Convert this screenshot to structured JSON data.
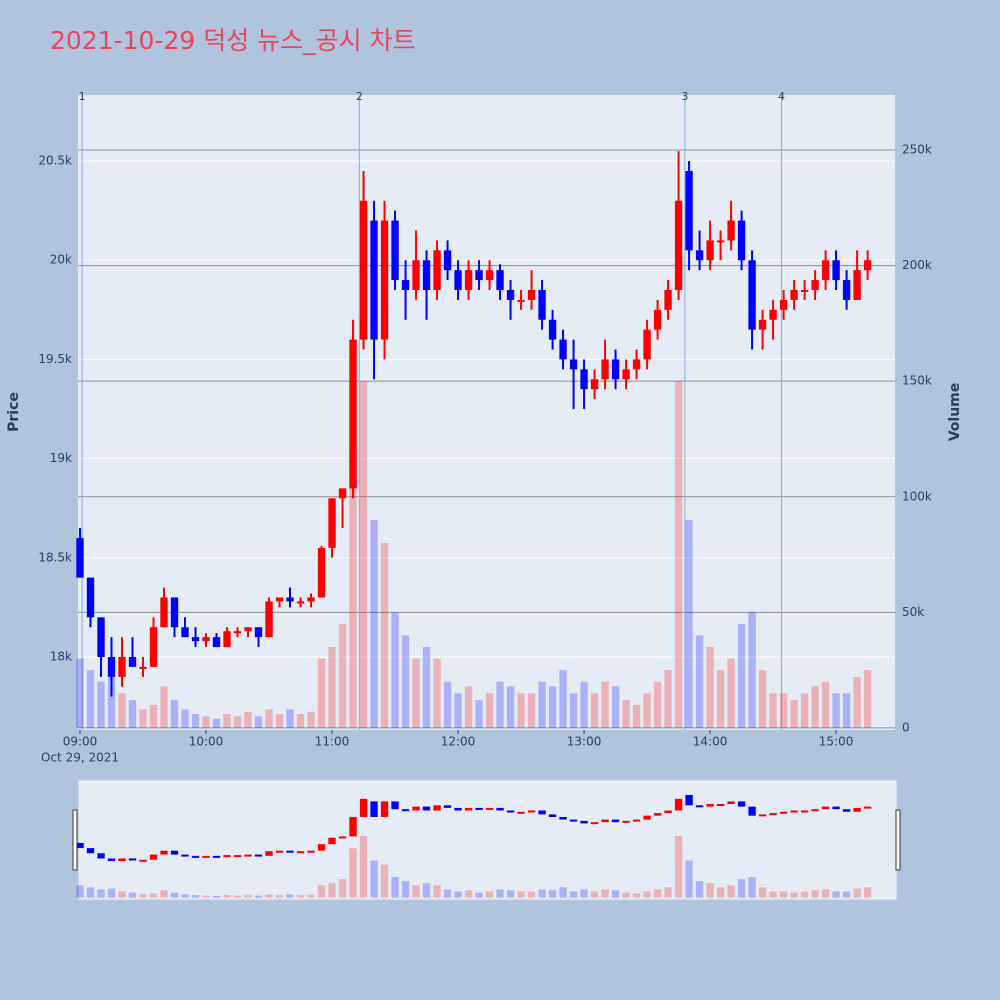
{
  "chart_data": {
    "type": "candlestick",
    "title": "2021-10-29 덕성 뉴스_공시 차트",
    "date_label": "Oct 29, 2021",
    "ylabel": "Price",
    "y2label": "Volume",
    "increasing_color": "#ff0000",
    "decreasing_color": "#0000ff",
    "xlim": [
      "09:00",
      "15:29"
    ],
    "xticks": [
      "09:00",
      "10:00",
      "11:00",
      "12:00",
      "13:00",
      "14:00",
      "15:00"
    ],
    "ylim": [
      17632,
      20833
    ],
    "yticks": [
      {
        "value": 18000,
        "label": "18k"
      },
      {
        "value": 18500,
        "label": "18.5k"
      },
      {
        "value": 19000,
        "label": "19k"
      },
      {
        "value": 19500,
        "label": "19.5k"
      },
      {
        "value": 20000,
        "label": "20k"
      },
      {
        "value": 20500,
        "label": "20.5k"
      }
    ],
    "y2lim": [
      -900,
      273800
    ],
    "y2ticks": [
      0,
      {
        "value": 50000,
        "label": "50k"
      },
      {
        "value": 100000,
        "label": "100k"
      },
      {
        "value": 150000,
        "label": "150k"
      },
      {
        "value": 200000,
        "label": "200k"
      },
      {
        "value": 250000,
        "label": "250k"
      }
    ],
    "annotations": [
      {
        "label": "1",
        "x": "09:01"
      },
      {
        "label": "2",
        "x": "11:13"
      },
      {
        "label": "3",
        "x": "13:48"
      },
      {
        "label": "4",
        "x": "14:34"
      }
    ],
    "x": [
      "09:00",
      "09:05",
      "09:10",
      "09:15",
      "09:20",
      "09:25",
      "09:30",
      "09:35",
      "09:40",
      "09:45",
      "09:50",
      "09:55",
      "10:00",
      "10:05",
      "10:10",
      "10:15",
      "10:20",
      "10:25",
      "10:30",
      "10:35",
      "10:40",
      "10:45",
      "10:50",
      "10:55",
      "11:00",
      "11:05",
      "11:10",
      "11:15",
      "11:20",
      "11:25",
      "11:30",
      "11:35",
      "11:40",
      "11:45",
      "11:50",
      "11:55",
      "12:00",
      "12:05",
      "12:10",
      "12:15",
      "12:20",
      "12:25",
      "12:30",
      "12:35",
      "12:40",
      "12:45",
      "12:50",
      "12:55",
      "13:00",
      "13:05",
      "13:10",
      "13:15",
      "13:20",
      "13:25",
      "13:30",
      "13:35",
      "13:40",
      "13:45",
      "13:50",
      "13:55",
      "14:00",
      "14:05",
      "14:10",
      "14:15",
      "14:20",
      "14:25",
      "14:30",
      "14:35",
      "14:40",
      "14:45",
      "14:50",
      "14:55",
      "15:00",
      "15:05",
      "15:10",
      "15:15"
    ],
    "open": [
      18600,
      18400,
      18200,
      18000,
      17900,
      18000,
      17950,
      17950,
      18150,
      18300,
      18150,
      18100,
      18080,
      18100,
      18050,
      18130,
      18130,
      18150,
      18100,
      18280,
      18300,
      18280,
      18280,
      18300,
      18550,
      18800,
      18850,
      19600,
      20200,
      19600,
      20200,
      19900,
      19850,
      20000,
      19850,
      20050,
      19950,
      19850,
      19950,
      19900,
      19950,
      19850,
      19800,
      19800,
      19850,
      19700,
      19600,
      19500,
      19450,
      19350,
      19400,
      19500,
      19400,
      19450,
      19500,
      19650,
      19750,
      19850,
      20450,
      20050,
      20000,
      20100,
      20100,
      20200,
      20000,
      19650,
      19700,
      19750,
      19800,
      19850,
      19850,
      19900,
      20000,
      19900,
      19800,
      19950
    ],
    "high": [
      18650,
      18400,
      18200,
      18100,
      18100,
      18100,
      18000,
      18200,
      18350,
      18300,
      18200,
      18150,
      18120,
      18120,
      18150,
      18150,
      18150,
      18150,
      18300,
      18300,
      18350,
      18300,
      18320,
      18560,
      18800,
      18850,
      19700,
      20450,
      20300,
      20300,
      20250,
      20000,
      20150,
      20050,
      20100,
      20100,
      20000,
      20000,
      20000,
      20000,
      19980,
      19900,
      19850,
      19950,
      19900,
      19750,
      19650,
      19600,
      19500,
      19450,
      19600,
      19550,
      19500,
      19550,
      19700,
      19800,
      19900,
      20550,
      20500,
      20150,
      20200,
      20150,
      20300,
      20250,
      20050,
      19750,
      19800,
      19850,
      19900,
      19900,
      19950,
      20050,
      20050,
      19950,
      20050,
      20050
    ],
    "low": [
      18400,
      18150,
      17900,
      17800,
      17850,
      17950,
      17900,
      17950,
      18150,
      18100,
      18100,
      18050,
      18050,
      18050,
      18050,
      18100,
      18100,
      18050,
      18100,
      18250,
      18250,
      18250,
      18250,
      18300,
      18500,
      18650,
      18800,
      19550,
      19400,
      19500,
      19850,
      19700,
      19800,
      19700,
      19800,
      19900,
      19800,
      19800,
      19850,
      19850,
      19800,
      19700,
      19750,
      19750,
      19650,
      19550,
      19450,
      19250,
      19250,
      19300,
      19350,
      19350,
      19350,
      19400,
      19450,
      19600,
      19700,
      19800,
      19950,
      19950,
      19950,
      20000,
      20050,
      19950,
      19550,
      19550,
      19600,
      19700,
      19750,
      19800,
      19800,
      19850,
      19850,
      19750,
      19800,
      19900
    ],
    "close": [
      18400,
      18200,
      18000,
      17900,
      18000,
      17950,
      17950,
      18150,
      18300,
      18150,
      18100,
      18080,
      18100,
      18050,
      18130,
      18130,
      18150,
      18100,
      18280,
      18300,
      18280,
      18280,
      18300,
      18550,
      18800,
      18850,
      19600,
      20300,
      19600,
      20200,
      19900,
      19850,
      20000,
      19850,
      20050,
      19950,
      19850,
      19950,
      19900,
      19950,
      19850,
      19800,
      19800,
      19850,
      19700,
      19600,
      19500,
      19450,
      19350,
      19400,
      19500,
      19400,
      19450,
      19500,
      19650,
      19750,
      19850,
      20300,
      20050,
      20000,
      20100,
      20100,
      20200,
      20000,
      19650,
      19700,
      19750,
      19800,
      19850,
      19850,
      19900,
      20000,
      19900,
      19800,
      19950,
      20000
    ],
    "volume": [
      30000,
      25000,
      20000,
      22000,
      15000,
      12000,
      8000,
      10000,
      18000,
      12000,
      8000,
      6000,
      5000,
      4000,
      6000,
      5000,
      7000,
      5000,
      8000,
      6000,
      8000,
      6000,
      7000,
      30000,
      35000,
      45000,
      120000,
      150000,
      90000,
      80000,
      50000,
      40000,
      30000,
      35000,
      30000,
      20000,
      15000,
      18000,
      12000,
      15000,
      20000,
      18000,
      15000,
      15000,
      20000,
      18000,
      25000,
      15000,
      20000,
      15000,
      20000,
      18000,
      12000,
      10000,
      15000,
      20000,
      25000,
      150000,
      90000,
      40000,
      35000,
      25000,
      30000,
      45000,
      50000,
      25000,
      15000,
      15000,
      12000,
      15000,
      18000,
      20000,
      15000,
      15000,
      22000,
      25000
    ]
  }
}
